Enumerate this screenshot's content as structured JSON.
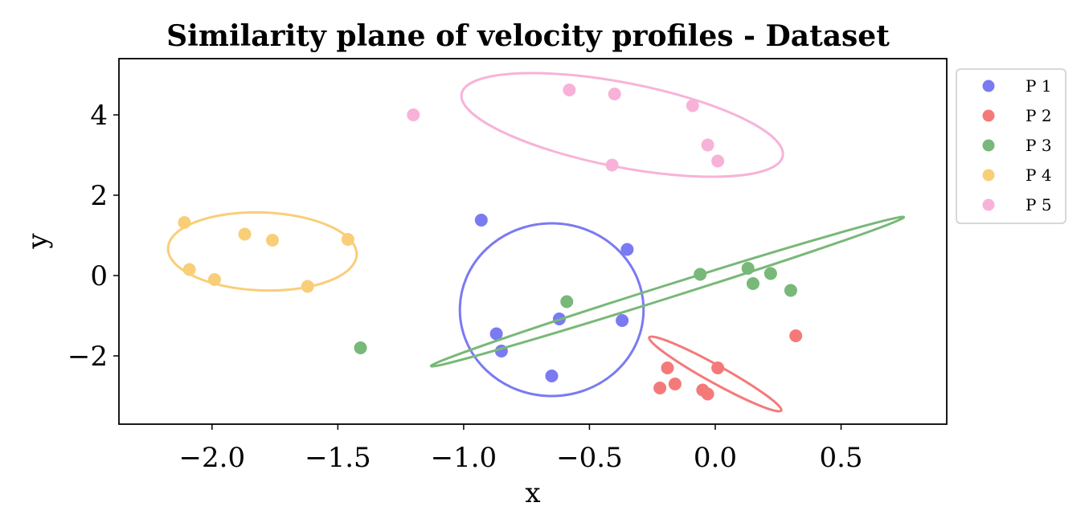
{
  "chart_data": {
    "type": "scatter",
    "title": "Similarity plane of velocity profiles - Dataset",
    "xlabel": "x",
    "ylabel": "y",
    "xlim": [
      -2.37,
      0.92
    ],
    "ylim": [
      -3.7,
      5.4
    ],
    "x_ticks": [
      {
        "value": -2.0,
        "label": "−2.0"
      },
      {
        "value": -1.5,
        "label": "−1.5"
      },
      {
        "value": -1.0,
        "label": "−1.0"
      },
      {
        "value": -0.5,
        "label": "−0.5"
      },
      {
        "value": 0.0,
        "label": "0.0"
      },
      {
        "value": 0.5,
        "label": "0.5"
      }
    ],
    "y_ticks": [
      {
        "value": -2,
        "label": "−2"
      },
      {
        "value": 0,
        "label": "0"
      },
      {
        "value": 2,
        "label": "2"
      },
      {
        "value": 4,
        "label": "4"
      }
    ],
    "grid": false,
    "legend_position": "outside-top-right",
    "series": [
      {
        "name": "P 1",
        "color": "#7a7af2",
        "points": [
          [
            -0.93,
            1.38
          ],
          [
            -0.35,
            0.65
          ],
          [
            -0.87,
            -1.45
          ],
          [
            -0.62,
            -1.08
          ],
          [
            -0.37,
            -1.12
          ],
          [
            -0.85,
            -1.88
          ],
          [
            -0.65,
            -2.5
          ]
        ],
        "ellipse": {
          "cx": -0.65,
          "cy": -0.85,
          "rx": 0.365,
          "ry": 2.15,
          "angle": 0
        }
      },
      {
        "name": "P 2",
        "color": "#f47a7a",
        "points": [
          [
            -0.19,
            -2.3
          ],
          [
            0.01,
            -2.3
          ],
          [
            0.32,
            -1.5
          ],
          [
            -0.16,
            -2.7
          ],
          [
            -0.22,
            -2.8
          ],
          [
            -0.05,
            -2.85
          ],
          [
            -0.03,
            -2.95
          ]
        ],
        "ellipse": {
          "cx": 0.0,
          "cy": -2.45,
          "rx": 0.3,
          "ry": 0.22,
          "angle": -29
        }
      },
      {
        "name": "P 3",
        "color": "#78b878",
        "points": [
          [
            -0.06,
            0.03
          ],
          [
            0.13,
            0.18
          ],
          [
            0.22,
            0.05
          ],
          [
            0.15,
            -0.2
          ],
          [
            0.3,
            -0.37
          ],
          [
            -0.59,
            -0.65
          ],
          [
            -1.41,
            -1.8
          ]
        ],
        "ellipse": {
          "cx": -0.19,
          "cy": -0.4,
          "rx": 0.985,
          "ry": 0.16,
          "angle": 17.5
        }
      },
      {
        "name": "P 4",
        "color": "#f9ce78",
        "points": [
          [
            -2.11,
            1.32
          ],
          [
            -1.87,
            1.03
          ],
          [
            -1.76,
            0.88
          ],
          [
            -1.46,
            0.9
          ],
          [
            -2.09,
            0.15
          ],
          [
            -1.99,
            -0.1
          ],
          [
            -1.62,
            -0.27
          ]
        ],
        "ellipse": {
          "cx": -1.8,
          "cy": 0.6,
          "rx": 0.375,
          "ry": 0.97,
          "angle": -2
        }
      },
      {
        "name": "P 5",
        "color": "#f8b2d8",
        "points": [
          [
            -1.2,
            4.0
          ],
          [
            -0.58,
            4.62
          ],
          [
            -0.4,
            4.52
          ],
          [
            -0.09,
            4.23
          ],
          [
            -0.03,
            3.25
          ],
          [
            0.01,
            2.85
          ],
          [
            -0.41,
            2.75
          ]
        ],
        "ellipse": {
          "cx": -0.37,
          "cy": 3.75,
          "rx": 0.65,
          "ry": 1.05,
          "angle": -11
        }
      }
    ]
  }
}
